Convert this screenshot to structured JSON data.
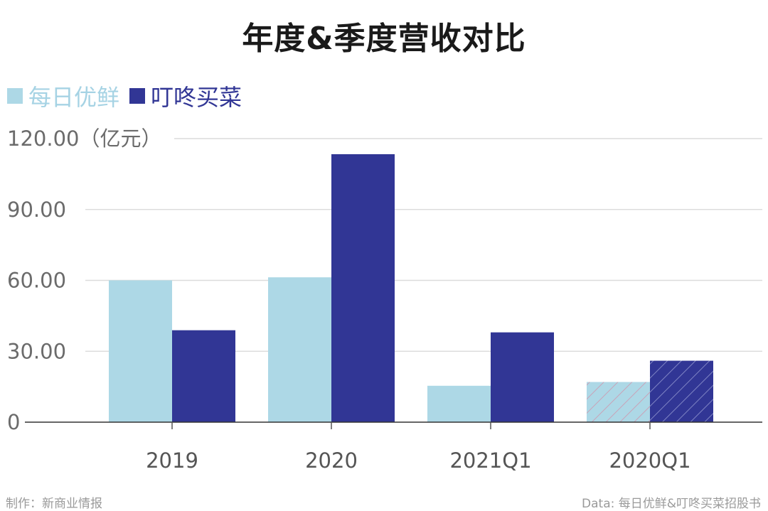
{
  "chart_data": {
    "type": "bar",
    "title": "年度&季度营收对比",
    "categories": [
      "2019",
      "2020",
      "2021Q1",
      "2020Q1"
    ],
    "series": [
      {
        "name": "每日优鲜",
        "values": [
          60.0,
          61.3,
          15.4,
          17.0
        ],
        "color": "#add8e6"
      },
      {
        "name": "叮咚买菜",
        "values": [
          38.9,
          113.4,
          38.0,
          26.0
        ],
        "color": "#313695"
      }
    ],
    "hatched_categories": [
      "2020Q1"
    ],
    "ylim": [
      0,
      120
    ],
    "yticks": [
      0,
      30,
      60,
      90,
      120
    ],
    "ytick_labels": [
      "0",
      "30.00",
      "60.00",
      "90.00",
      "120.00"
    ],
    "ylabel": "（亿元）",
    "grid": true,
    "legend": "top-left"
  },
  "footer": {
    "left": "制作：新商业情报",
    "right": "Data: 每日优鲜&叮咚买菜招股书"
  }
}
